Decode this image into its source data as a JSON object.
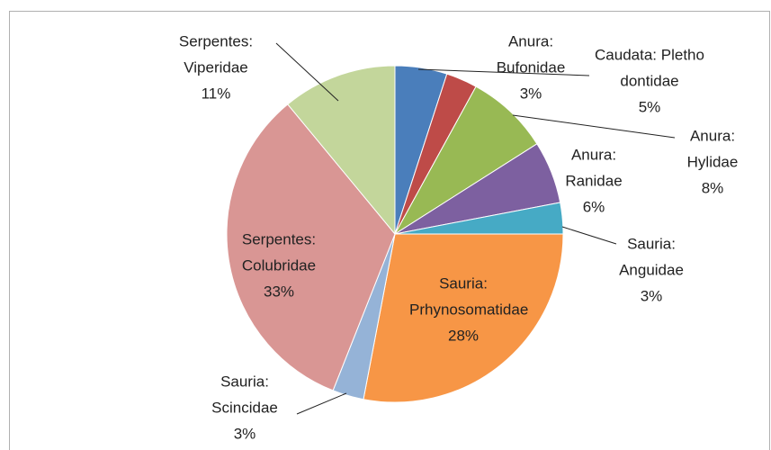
{
  "chart_data": {
    "type": "pie",
    "categories": [
      "Caudata: Plethodontidae",
      "Anura: Bufonidae",
      "Anura: Hylidae",
      "Anura: Ranidae",
      "Sauria: Anguidae",
      "Sauria: Prhynosomatidae",
      "Sauria: Scincidae",
      "Serpentes: Colubridae",
      "Serpentes: Viperidae"
    ],
    "values": [
      5,
      3,
      8,
      6,
      3,
      28,
      3,
      33,
      11
    ],
    "value_labels": [
      "5%",
      "3%",
      "8%",
      "6%",
      "3%",
      "28%",
      "3%",
      "33%",
      "11%"
    ],
    "colors": [
      "#4a7ebb",
      "#be4b48",
      "#98b954",
      "#7d60a0",
      "#46aac5",
      "#f79646",
      "#95b3d7",
      "#d99694",
      "#c3d69b"
    ]
  }
}
